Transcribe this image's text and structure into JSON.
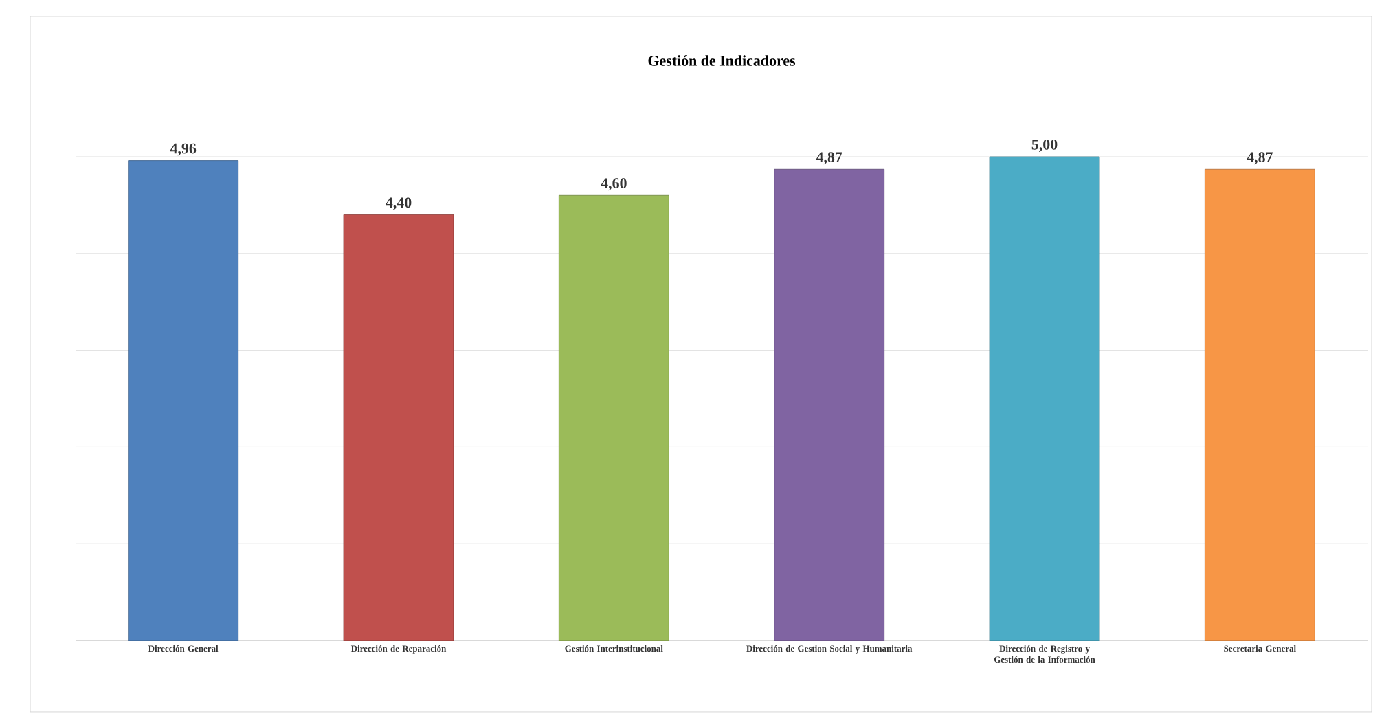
{
  "chart_data": {
    "type": "bar",
    "title": "Gestión de Indicadores",
    "categories": [
      "Dirección General",
      "Dirección de Reparación",
      "Gestión Interinstitucional",
      "Dirección de Gestion Social y Humanitaria",
      "Dirección de Registro y Gestión de la Información",
      "Secretaria General"
    ],
    "values": [
      4.96,
      4.4,
      4.6,
      4.87,
      5.0,
      4.87
    ],
    "colors": [
      "#4f81bd",
      "#c0504d",
      "#9bbb59",
      "#8064a2",
      "#4bacc6",
      "#f79646"
    ],
    "value_labels": [
      "4,96",
      "4,40",
      "4,60",
      "4,87",
      "5,00",
      "4,87"
    ],
    "ylim": [
      0,
      5
    ],
    "yticks": [
      {
        "value": 0,
        "label": null
      },
      {
        "value": 1,
        "label": null
      },
      {
        "value": 2,
        "label": null
      },
      {
        "value": 3,
        "label": null
      },
      {
        "value": 4,
        "label": null
      },
      {
        "value": 5,
        "label": null
      }
    ],
    "tick_labels": "x",
    "grid": "y"
  }
}
